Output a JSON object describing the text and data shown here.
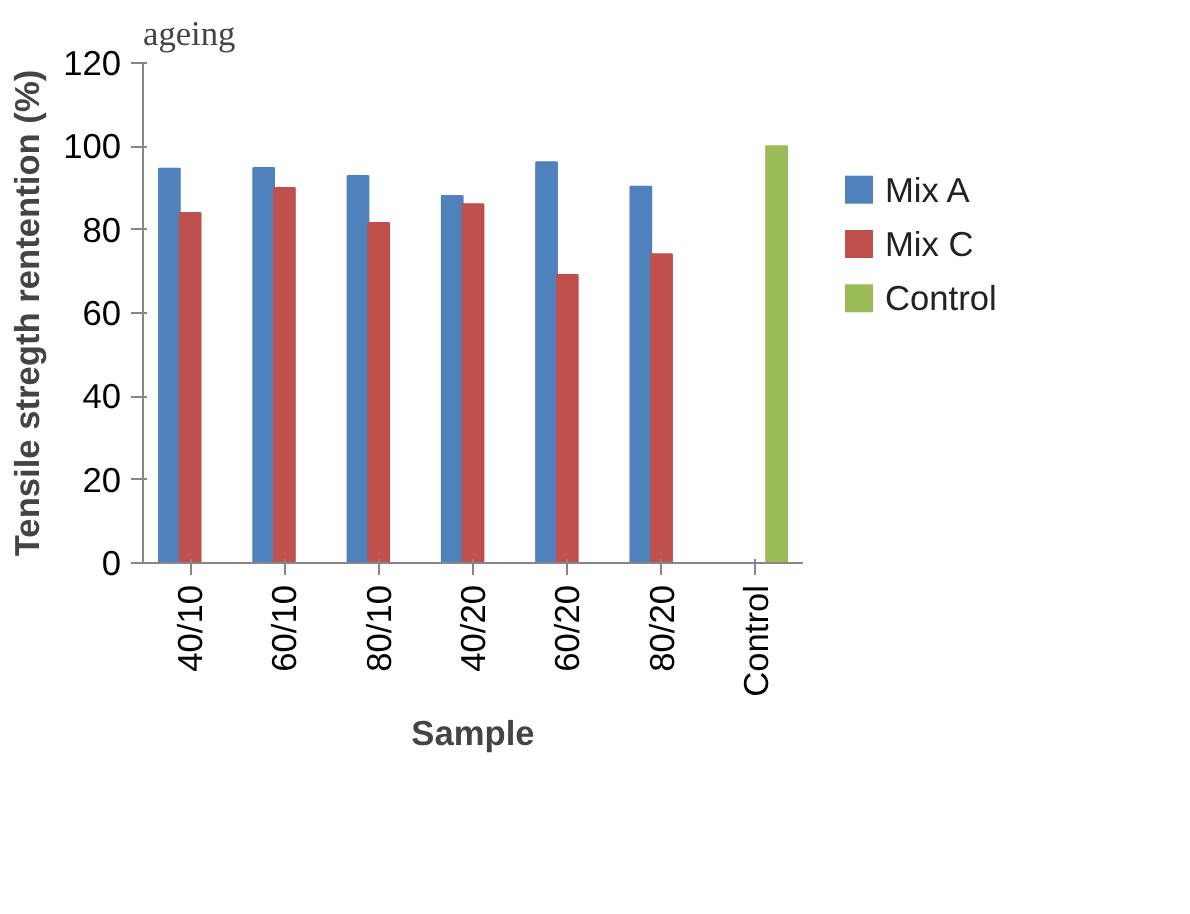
{
  "chart_data": {
    "type": "bar",
    "ylabel": "Tensile stregth rentention (%)",
    "xlabel": "Sample",
    "annotations": [
      "ageing"
    ],
    "categories": [
      "40/10",
      "60/10",
      "80/10",
      "40/20",
      "60/20",
      "80/20",
      "Control"
    ],
    "series": [
      {
        "name": "Mix A",
        "color": "#4f81bd",
        "values": [
          94.6,
          94.8,
          92.9,
          88.1,
          96.2,
          90.3,
          null
        ]
      },
      {
        "name": "Mix C",
        "color": "#c0504d",
        "values": [
          84.0,
          90.0,
          81.6,
          86.1,
          69.1,
          74.1,
          null
        ]
      },
      {
        "name": "Control",
        "color": "#9bbb59",
        "values": [
          null,
          null,
          null,
          null,
          null,
          null,
          100
        ]
      }
    ],
    "ylim": [
      0,
      120
    ],
    "yticks": [
      0,
      20,
      40,
      60,
      80,
      100,
      120
    ],
    "legend": "right"
  }
}
